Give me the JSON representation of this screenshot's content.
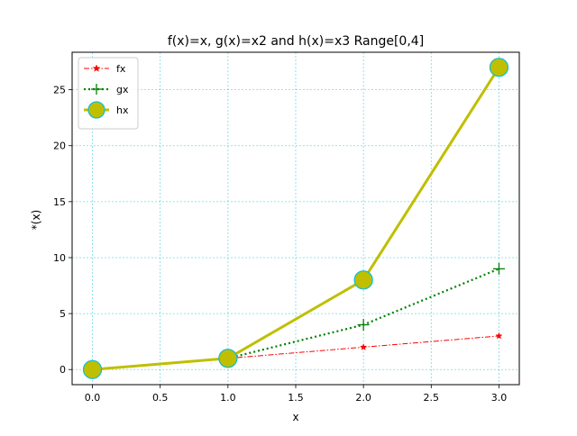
{
  "chart_data": {
    "type": "line",
    "title": "f(x)=x, g(x)=x2 and h(x)=x3 Range[0,4]",
    "xlabel": "x",
    "ylabel": "*(x)",
    "x": [
      0,
      1,
      2,
      3
    ],
    "xlim": [
      -0.15,
      3.15
    ],
    "ylim": [
      -1.35,
      28.35
    ],
    "xticks": [
      0.0,
      0.5,
      1.0,
      1.5,
      2.0,
      2.5,
      3.0
    ],
    "xtick_labels": [
      "0.0",
      "0.5",
      "1.0",
      "1.5",
      "2.0",
      "2.5",
      "3.0"
    ],
    "yticks": [
      0,
      5,
      10,
      15,
      20,
      25
    ],
    "ytick_labels": [
      "0",
      "5",
      "10",
      "15",
      "20",
      "25"
    ],
    "grid": true,
    "grid_color": "#00bcd4",
    "legend_position": "upper-left",
    "series": [
      {
        "name": "fx",
        "values": [
          0,
          1,
          2,
          3
        ],
        "color": "#ff0000",
        "marker": "star",
        "linestyle": "dashdot"
      },
      {
        "name": "gx",
        "values": [
          0,
          1,
          4,
          9
        ],
        "color": "#008000",
        "marker": "plus",
        "linestyle": "dotted"
      },
      {
        "name": "hx",
        "values": [
          0,
          1,
          8,
          27
        ],
        "color": "#bfbf00",
        "marker": "circle",
        "marker_edge_color": "#17becf",
        "linestyle": "solid"
      }
    ]
  }
}
